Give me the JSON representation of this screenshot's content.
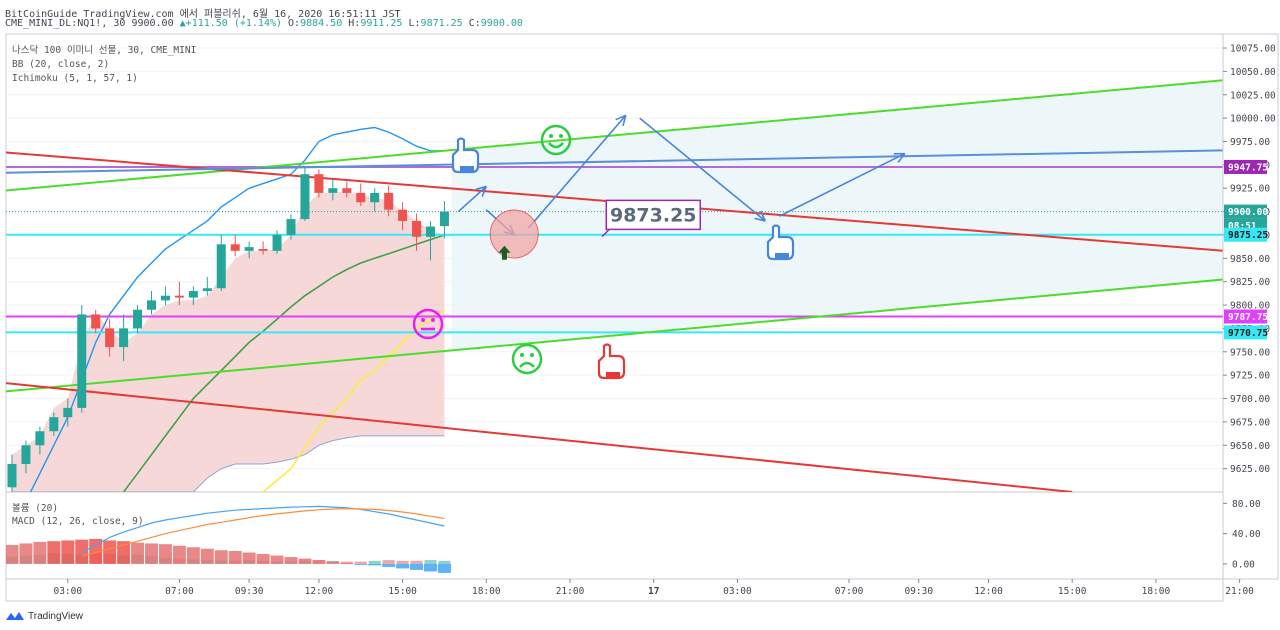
{
  "header": {
    "line1": "BitCoinGuide TradingView.com 에서 퍼블리쉬, 6월 16, 2020 16:51:11 JST",
    "symbol": "CME_MINI_DL:NQ1!, 30",
    "last": "9900.00",
    "change": "+111.50 (+1.14%)",
    "o_label": "O:",
    "o": "9884.50",
    "h_label": "H:",
    "h": "9911.25",
    "l_label": "L:",
    "l": "9871.25",
    "c_label": "C:",
    "c": "9900.00"
  },
  "legend": {
    "title": "나스닥 100 이미니 선물, 30, CME_MINI",
    "bb": "BB (20, close, 2)",
    "ichimoku": "Ichimoku (5, 1, 57, 1)",
    "volume": "볼륨 (20)",
    "macd": "MACD (12, 26, close, 9)"
  },
  "footer": {
    "brand": "TradingView"
  },
  "colors": {
    "up": "#26a69a",
    "down": "#ef5350",
    "bb": "#2196f3",
    "kijun": "#43a047",
    "chikou": "#ffeb3b",
    "cloud": "#f4c7c7",
    "red_line": "#e53935",
    "green_line": "#4cdd29",
    "purple": "#b26bda",
    "cyan": "#34e8f5",
    "magenta": "#e040fb",
    "macd": "#42a5f5",
    "signal": "#ff8a3d"
  },
  "chart_data": {
    "type": "candlestick",
    "ylim": [
      9600,
      10090
    ],
    "price_ticks": [
      "10075.00",
      "10050.00",
      "10025.00",
      "10000.00",
      "9975.00",
      "9950.00",
      "9925.00",
      "9900.00",
      "9875.00",
      "9850.00",
      "9825.00",
      "9800.00",
      "9775.00",
      "9750.00",
      "9725.00",
      "9700.00",
      "9675.00",
      "9650.00",
      "9625.00"
    ],
    "price_tick_values": [
      10075,
      10050,
      10025,
      10000,
      9975,
      9950,
      9925,
      9900,
      9875,
      9850,
      9825,
      9800,
      9775,
      9750,
      9725,
      9700,
      9675,
      9650,
      9625
    ],
    "time_labels": [
      {
        "label": "03:00",
        "bar": 4
      },
      {
        "label": "07:00",
        "bar": 12
      },
      {
        "label": "09:30",
        "bar": 17
      },
      {
        "label": "12:00",
        "bar": 22
      },
      {
        "label": "15:00",
        "bar": 28
      },
      {
        "label": "18:00",
        "bar": 34
      },
      {
        "label": "21:00",
        "bar": 40
      },
      {
        "label": "17",
        "bar": 46
      },
      {
        "label": "03:00",
        "bar": 52
      },
      {
        "label": "07:00",
        "bar": 60
      },
      {
        "label": "09:30",
        "bar": 65
      },
      {
        "label": "12:00",
        "bar": 70
      },
      {
        "label": "15:00",
        "bar": 76
      },
      {
        "label": "18:00",
        "bar": 82
      },
      {
        "label": "21:00",
        "bar": 88
      }
    ],
    "candles": [
      {
        "o": 9605,
        "h": 9640,
        "l": 9600,
        "c": 9630
      },
      {
        "o": 9630,
        "h": 9655,
        "l": 9620,
        "c": 9650
      },
      {
        "o": 9650,
        "h": 9670,
        "l": 9640,
        "c": 9665
      },
      {
        "o": 9665,
        "h": 9685,
        "l": 9660,
        "c": 9680
      },
      {
        "o": 9680,
        "h": 9700,
        "l": 9670,
        "c": 9690
      },
      {
        "o": 9690,
        "h": 9800,
        "l": 9685,
        "c": 9790
      },
      {
        "o": 9790,
        "h": 9795,
        "l": 9770,
        "c": 9775
      },
      {
        "o": 9775,
        "h": 9785,
        "l": 9745,
        "c": 9755
      },
      {
        "o": 9755,
        "h": 9790,
        "l": 9740,
        "c": 9775
      },
      {
        "o": 9775,
        "h": 9800,
        "l": 9770,
        "c": 9795
      },
      {
        "o": 9795,
        "h": 9815,
        "l": 9790,
        "c": 9805
      },
      {
        "o": 9805,
        "h": 9820,
        "l": 9800,
        "c": 9810
      },
      {
        "o": 9810,
        "h": 9825,
        "l": 9800,
        "c": 9808
      },
      {
        "o": 9808,
        "h": 9820,
        "l": 9800,
        "c": 9815
      },
      {
        "o": 9815,
        "h": 9830,
        "l": 9810,
        "c": 9818
      },
      {
        "o": 9818,
        "h": 9875,
        "l": 9815,
        "c": 9865
      },
      {
        "o": 9865,
        "h": 9875,
        "l": 9852,
        "c": 9858
      },
      {
        "o": 9858,
        "h": 9868,
        "l": 9850,
        "c": 9862
      },
      {
        "o": 9860,
        "h": 9868,
        "l": 9854,
        "c": 9858
      },
      {
        "o": 9858,
        "h": 9880,
        "l": 9855,
        "c": 9875
      },
      {
        "o": 9875,
        "h": 9897,
        "l": 9870,
        "c": 9892
      },
      {
        "o": 9892,
        "h": 9948,
        "l": 9890,
        "c": 9940
      },
      {
        "o": 9940,
        "h": 9945,
        "l": 9915,
        "c": 9920
      },
      {
        "o": 9920,
        "h": 9935,
        "l": 9912,
        "c": 9925
      },
      {
        "o": 9925,
        "h": 9932,
        "l": 9915,
        "c": 9920
      },
      {
        "o": 9920,
        "h": 9930,
        "l": 9906,
        "c": 9910
      },
      {
        "o": 9910,
        "h": 9925,
        "l": 9900,
        "c": 9920
      },
      {
        "o": 9920,
        "h": 9928,
        "l": 9895,
        "c": 9902
      },
      {
        "o": 9902,
        "h": 9910,
        "l": 9880,
        "c": 9890
      },
      {
        "o": 9890,
        "h": 9898,
        "l": 9858,
        "c": 9873
      },
      {
        "o": 9873,
        "h": 9890,
        "l": 9848,
        "c": 9884
      },
      {
        "o": 9884.5,
        "h": 9911.25,
        "l": 9871.25,
        "c": 9900
      }
    ],
    "bb_upper": [
      9560,
      9590,
      9620,
      9650,
      9680,
      9720,
      9760,
      9790,
      9810,
      9830,
      9845,
      9860,
      9870,
      9880,
      9890,
      9905,
      9915,
      9925,
      9930,
      9935,
      9940,
      9955,
      9975,
      9982,
      9985,
      9988,
      9990,
      9985,
      9978,
      9970,
      9965,
      9965
    ],
    "kijun": [
      null,
      null,
      null,
      null,
      null,
      null,
      null,
      null,
      9600,
      9620,
      9640,
      9660,
      9680,
      9700,
      9715,
      9730,
      9745,
      9760,
      9772,
      9785,
      9798,
      9810,
      9820,
      9830,
      9838,
      9845,
      9850,
      9855,
      9860,
      9865,
      9870,
      9875
    ],
    "chikou": [
      {
        "bar": 18,
        "v": 9600
      },
      {
        "bar": 20,
        "v": 9625
      },
      {
        "bar": 22,
        "v": 9670
      },
      {
        "bar": 24,
        "v": 9700
      },
      {
        "bar": 25,
        "v": 9720
      },
      {
        "bar": 26,
        "v": 9730
      },
      {
        "bar": 27,
        "v": 9745
      },
      {
        "bar": 28,
        "v": 9760
      },
      {
        "bar": 29,
        "v": 9775
      },
      {
        "bar": 30,
        "v": 9785
      },
      {
        "bar": 31,
        "v": 9795
      }
    ],
    "cloud_top": [
      9640,
      9650,
      9660,
      9690,
      9700,
      9760,
      9790,
      9775,
      9760,
      9770,
      9790,
      9800,
      9805,
      9805,
      9810,
      9830,
      9850,
      9858,
      9858,
      9860,
      9875,
      9905,
      9920,
      9920,
      9922,
      9918,
      9915,
      9912,
      9900,
      9890,
      9880,
      9875
    ],
    "cloud_bottom": 9660,
    "cloud_bottom_left": [
      9600,
      9600,
      9600,
      9600,
      9600,
      9600,
      9600,
      9600,
      9600,
      9600,
      9600,
      9600,
      9600,
      9600,
      9615,
      9625,
      9630,
      9630,
      9630,
      9632,
      9635,
      9640,
      9650,
      9655,
      9658,
      9660,
      9660,
      9660,
      9660,
      9660,
      9660,
      9660
    ],
    "volume_ticks": [
      "80.00",
      "40.00",
      "0.00"
    ],
    "volume_tick_values": [
      80,
      40,
      0
    ],
    "volume_ylim": [
      -20,
      95
    ],
    "volume_bars": [
      10,
      11,
      12,
      14,
      13,
      12,
      15,
      13,
      11,
      12,
      10,
      8,
      7,
      6,
      5,
      4,
      4,
      5,
      4,
      3,
      3,
      4,
      5,
      4,
      3,
      3,
      4,
      5,
      4,
      4,
      5,
      4
    ],
    "macd_hist": [
      25,
      27,
      29,
      30,
      31,
      32,
      33,
      31,
      30,
      28,
      27,
      26,
      24,
      22,
      20,
      18,
      17,
      15,
      13,
      11,
      9,
      7,
      5,
      3,
      1,
      -1,
      -2,
      -4,
      -6,
      -8,
      -10,
      -12
    ],
    "macd_line": [
      null,
      null,
      null,
      null,
      null,
      15,
      25,
      35,
      42,
      48,
      54,
      58,
      61,
      64,
      67,
      69,
      71,
      72,
      73,
      74,
      75,
      75.5,
      76,
      75,
      74,
      72,
      69,
      66,
      62,
      58,
      54,
      50
    ],
    "signal_line": [
      null,
      null,
      null,
      null,
      null,
      10,
      15,
      20,
      25,
      30,
      35,
      40,
      44,
      48,
      52,
      55,
      58,
      61,
      64,
      66,
      68,
      70,
      71.5,
      72.5,
      73,
      72.5,
      72,
      70.5,
      68.5,
      66,
      63,
      60
    ],
    "levels": [
      {
        "label": "9947.75",
        "value": 9947.75,
        "color": "#b26bda"
      },
      {
        "label": "9900.00",
        "value": 9900,
        "color": "#26a69a"
      },
      {
        "label": "08:51",
        "value": null,
        "color": "#26a69a"
      },
      {
        "label": "9875.25",
        "value": 9875.25,
        "color": "#34e8f5"
      },
      {
        "label": "9787.75",
        "value": 9787.75,
        "color": "#e040fb"
      },
      {
        "label": "9770.75",
        "value": 9770.75,
        "color": "#34e8f5"
      }
    ],
    "trend_lines": [
      {
        "name": "green-top",
        "x1": -6,
        "y1": 9915,
        "x2": 96,
        "y2": 10053
      },
      {
        "name": "green-bottom",
        "x1": -6,
        "y1": 9700,
        "x2": 96,
        "y2": 9840
      },
      {
        "name": "red-top",
        "x1": -6,
        "y1": 9970,
        "x2": 96,
        "y2": 9847
      },
      {
        "name": "red-bottom",
        "x1": -6,
        "y1": 9725,
        "x2": 76,
        "y2": 9600
      },
      {
        "name": "blue",
        "x1": -6,
        "y1": 9940,
        "x2": 96,
        "y2": 9968
      }
    ],
    "annotation_price": "9873.25",
    "annotation_price_value": 9873.25,
    "path_arrows": [
      [
        {
          "bar": 32,
          "v": 9900
        },
        {
          "bar": 34,
          "v": 9927
        }
      ],
      [
        {
          "bar": 34,
          "v": 9902
        },
        {
          "bar": 36,
          "v": 9875
        }
      ],
      [
        {
          "bar": 37,
          "v": 9882
        },
        {
          "bar": 44,
          "v": 10003
        }
      ],
      [
        {
          "bar": 45,
          "v": 10000
        },
        {
          "bar": 54,
          "v": 9890
        }
      ],
      [
        {
          "bar": 55,
          "v": 9895
        },
        {
          "bar": 64,
          "v": 9962
        }
      ]
    ]
  }
}
